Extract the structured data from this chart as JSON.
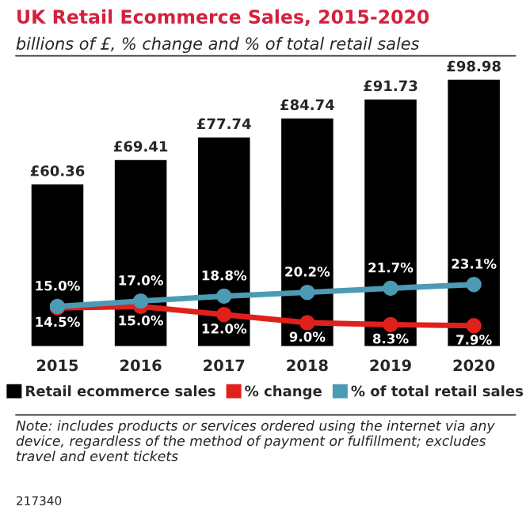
{
  "chart_data": {
    "type": "bar",
    "title": "UK Retail Ecommerce Sales, 2015-2020",
    "subtitle": "billions of £, % change and % of total retail sales",
    "categories": [
      "2015",
      "2016",
      "2017",
      "2018",
      "2019",
      "2020"
    ],
    "series": [
      {
        "name": "Retail ecommerce sales",
        "color": "#000000",
        "values": [
          60.36,
          69.41,
          77.74,
          84.74,
          91.73,
          98.98
        ],
        "value_labels": [
          "£60.36",
          "£69.41",
          "£77.74",
          "£84.74",
          "£91.73",
          "£98.98"
        ]
      },
      {
        "name": "% change",
        "type": "line",
        "color": "#e0201b",
        "values": [
          14.5,
          15.0,
          12.0,
          9.0,
          8.3,
          7.9
        ],
        "value_labels": [
          "14.5%",
          "15.0%",
          "12.0%",
          "9.0%",
          "8.3%",
          "7.9%"
        ]
      },
      {
        "name": "% of total retail sales",
        "type": "line",
        "color": "#4b9bb5",
        "values": [
          15.0,
          17.0,
          18.8,
          20.2,
          21.7,
          23.1
        ],
        "value_labels": [
          "15.0%",
          "17.0%",
          "18.8%",
          "20.2%",
          "21.7%",
          "23.1%"
        ]
      }
    ],
    "tick_labels": "x",
    "marker": "circle",
    "line_style": "solid",
    "grid": false,
    "legend": "bottom",
    "annotations": [
      "Note: includes products or services ordered using the internet via any device, regardless of the method of payment or fulfillment; excludes travel and event tickets",
      "217340"
    ]
  }
}
